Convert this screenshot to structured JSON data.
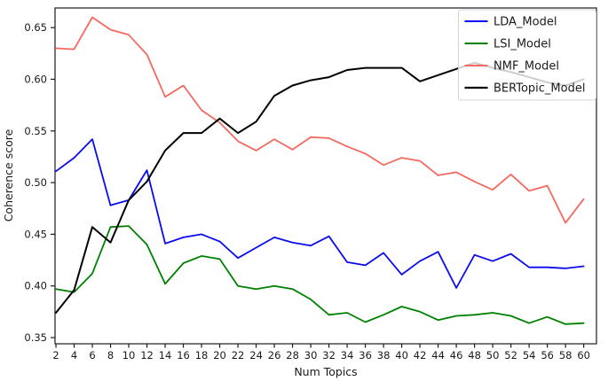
{
  "chart_data": {
    "type": "line",
    "title": "",
    "xlabel": "Num Topics",
    "ylabel": "Coherence score",
    "grid": false,
    "legend_position": "upper right",
    "xlim": [
      1.9,
      61.4
    ],
    "ylim": [
      0.344,
      0.669
    ],
    "xticks": [
      2,
      4,
      6,
      8,
      10,
      12,
      14,
      16,
      18,
      20,
      22,
      24,
      26,
      28,
      30,
      32,
      34,
      36,
      38,
      40,
      42,
      44,
      46,
      48,
      50,
      52,
      54,
      56,
      58,
      60
    ],
    "yticks": [
      0.35,
      0.4,
      0.45,
      0.5,
      0.55,
      0.6,
      0.65
    ],
    "x": [
      2,
      4,
      6,
      8,
      10,
      12,
      14,
      16,
      18,
      20,
      22,
      24,
      26,
      28,
      30,
      32,
      34,
      36,
      38,
      40,
      42,
      44,
      46,
      48,
      50,
      52,
      54,
      56,
      58,
      60
    ],
    "series": [
      {
        "name": "LDA_Model",
        "color": "#0b0bf0",
        "line_width": 1.8,
        "values": [
          0.511,
          0.524,
          0.542,
          0.478,
          0.483,
          0.512,
          0.441,
          0.447,
          0.45,
          0.443,
          0.427,
          0.437,
          0.447,
          0.442,
          0.439,
          0.448,
          0.423,
          0.42,
          0.432,
          0.411,
          0.424,
          0.433,
          0.398,
          0.43,
          0.424,
          0.431,
          0.418,
          0.418,
          0.417,
          0.419
        ]
      },
      {
        "name": "LSI_Model",
        "color": "#008000",
        "line_width": 1.8,
        "values": [
          0.397,
          0.394,
          0.412,
          0.457,
          0.458,
          0.44,
          0.402,
          0.422,
          0.429,
          0.426,
          0.4,
          0.397,
          0.4,
          0.397,
          0.387,
          0.372,
          0.374,
          0.365,
          0.372,
          0.38,
          0.375,
          0.367,
          0.371,
          0.372,
          0.374,
          0.371,
          0.364,
          0.37,
          0.363,
          0.364
        ]
      },
      {
        "name": "NMF_Model",
        "color": "#f4695f",
        "line_width": 1.8,
        "values": [
          0.63,
          0.629,
          0.66,
          0.648,
          0.643,
          0.624,
          0.583,
          0.594,
          0.57,
          0.558,
          0.54,
          0.531,
          0.542,
          0.532,
          0.544,
          0.543,
          0.535,
          0.528,
          0.517,
          0.524,
          0.521,
          0.507,
          0.51,
          0.501,
          0.493,
          0.508,
          0.492,
          0.497,
          0.461,
          0.484
        ]
      },
      {
        "name": "BERTopic_Model",
        "color": "#000000",
        "line_width": 2.0,
        "values": [
          0.374,
          0.396,
          0.457,
          0.442,
          0.483,
          0.501,
          0.531,
          0.548,
          0.548,
          0.562,
          0.548,
          0.559,
          0.584,
          0.594,
          0.599,
          0.602,
          0.609,
          0.611,
          0.611,
          0.611,
          0.598,
          0.604,
          0.61,
          0.616,
          0.611,
          0.607,
          0.602,
          0.597,
          0.594,
          0.6
        ]
      }
    ],
    "axis_color": "#1a1a1a",
    "legend_border_color": "#d5d5d5",
    "legend_background": "#ffffff"
  }
}
